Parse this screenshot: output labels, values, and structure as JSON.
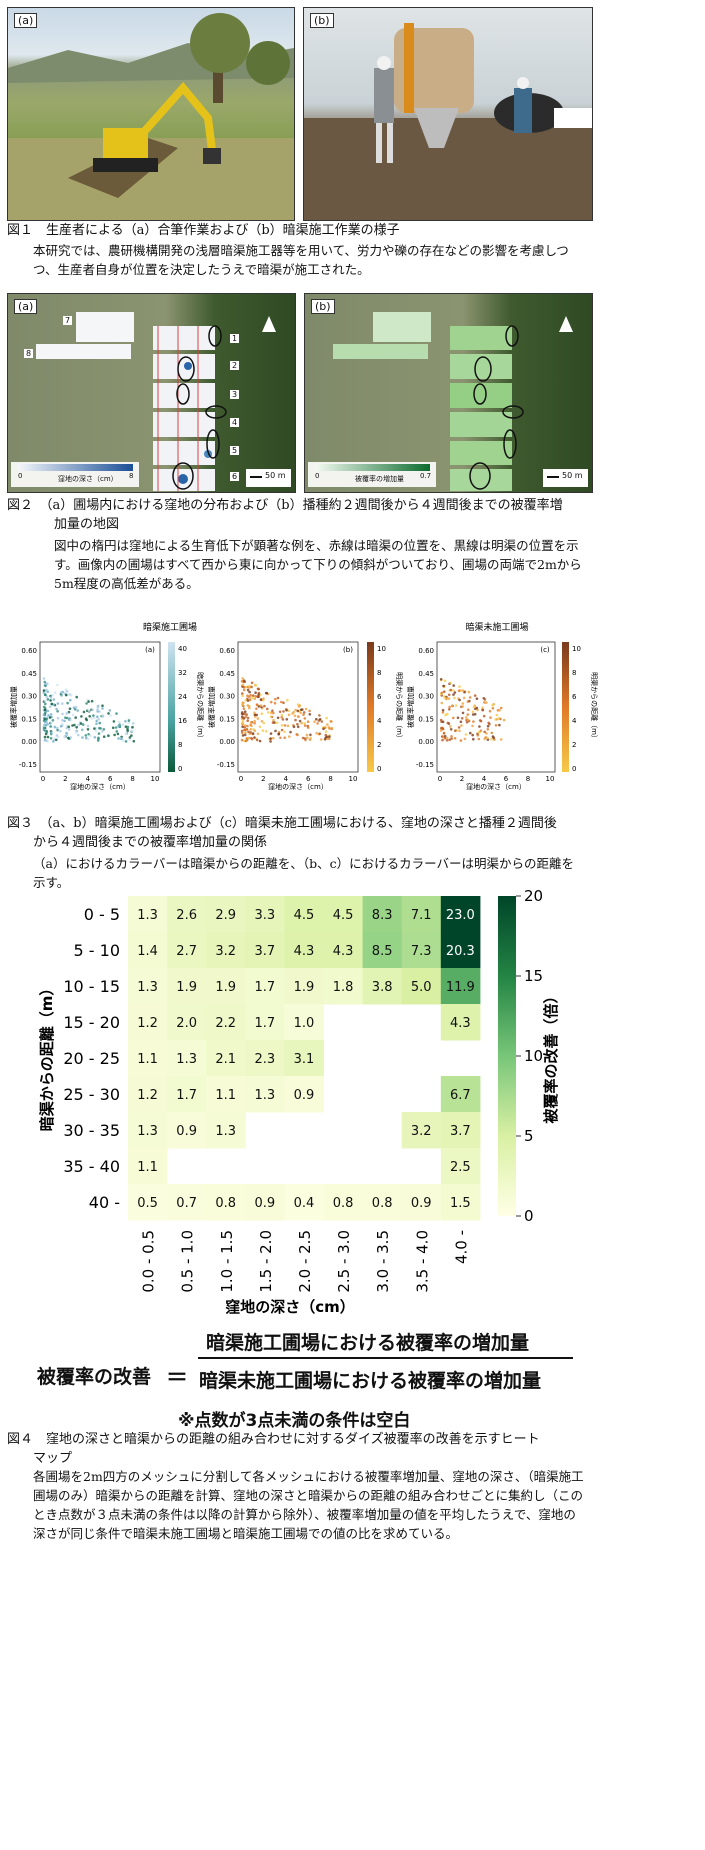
{
  "fig1": {
    "label_a": "(a)",
    "label_b": "(b)",
    "caption": "図１　生産者による（a）合筆作業および（b）暗渠施工作業の様子",
    "body": "本研究では、農研機構開発の浅層暗渠施工器等を用いて、労力や礫の存在などの影響を考慮しつつ、生産者自身が位置を決定したうえで暗渠が施工された。"
  },
  "fig2": {
    "label_a": "(a)",
    "label_b": "(b)",
    "field_numbers": [
      "1",
      "2",
      "3",
      "4",
      "5",
      "6",
      "7",
      "8"
    ],
    "colorbar_a_label": "窪地の深さ（cm）",
    "colorbar_a_min": "0",
    "colorbar_a_max": "8",
    "colorbar_b_label": "被覆率の増加量",
    "colorbar_b_min": "0",
    "colorbar_b_max": "0.7",
    "scale": "50 m",
    "caption_line1": "図２　（a）圃場内における窪地の分布および（b）播種約２週間後から４週間後までの被覆率増",
    "caption_line2": "加量の地図",
    "body": "図中の楕円は窪地による生育低下が顕著な例を、赤線は暗渠の位置を、黒線は明渠の位置を示す。画像内の圃場はすべて西から東に向かって下りの傾斜がついており、圃場の両端で2mから5m程度の高低差がある。"
  },
  "fig3": {
    "title_left": "暗渠施工圃場",
    "title_right": "暗渠未施工圃場",
    "panels": [
      "(a)",
      "(b)",
      "(c)"
    ],
    "ylabel": "被覆率増加量",
    "xlabel": "窪地の深さ（cm）",
    "yticks": [
      "0.60",
      "0.45",
      "0.30",
      "0.15",
      "0.00",
      "-0.15"
    ],
    "xticks": [
      "0",
      "2",
      "4",
      "6",
      "8",
      "10"
    ],
    "cbar_a_label": "暗渠からの距離（m）",
    "cbar_a_ticks": [
      "40",
      "32",
      "24",
      "16",
      "8",
      "0"
    ],
    "cbar_bc_label": "明渠からの距離（m）",
    "cbar_bc_ticks": [
      "10",
      "8",
      "6",
      "4",
      "2",
      "0"
    ],
    "caption_line1": "図３　（a、b）暗渠施工圃場および（c）暗渠未施工圃場における、窪地の深さと播種２週間後",
    "caption_line2": "から４週間後までの被覆率増加量の関係",
    "body": "（a）におけるカラーバーは暗渠からの距離を、（b、c）におけるカラーバーは明渠からの距離を示す。"
  },
  "chart_data": {
    "type": "heatmap",
    "xlabel": "窪地の深さ（cm）",
    "ylabel": "暗渠からの距離（m）",
    "colorbar_label": "被覆率の改善（倍）",
    "colorbar_ticks": [
      "20",
      "15",
      "10",
      "5",
      "0"
    ],
    "vmin": 0,
    "vmax": 20,
    "x_categories": [
      "0.0 - 0.5",
      "0.5 - 1.0",
      "1.0 - 1.5",
      "1.5 - 2.0",
      "2.0 - 2.5",
      "2.5 - 3.0",
      "3.0 - 3.5",
      "3.5 - 4.0",
      "4.0 -"
    ],
    "y_categories": [
      "0 - 5",
      "5 - 10",
      "10 - 15",
      "15 - 20",
      "20 - 25",
      "25 - 30",
      "30 - 35",
      "35 - 40",
      "40 -"
    ],
    "values": [
      [
        1.3,
        2.6,
        2.9,
        3.3,
        4.5,
        4.5,
        8.3,
        7.1,
        23.0
      ],
      [
        1.4,
        2.7,
        3.2,
        3.7,
        4.3,
        4.3,
        8.5,
        7.3,
        20.3
      ],
      [
        1.3,
        1.9,
        1.9,
        1.7,
        1.9,
        1.8,
        3.8,
        5.0,
        11.9
      ],
      [
        1.2,
        2.0,
        2.2,
        1.7,
        1.0,
        null,
        null,
        null,
        4.3
      ],
      [
        1.1,
        1.3,
        2.1,
        2.3,
        3.1,
        null,
        null,
        null,
        null
      ],
      [
        1.2,
        1.7,
        1.1,
        1.3,
        0.9,
        null,
        null,
        null,
        6.7
      ],
      [
        1.3,
        0.9,
        1.3,
        null,
        null,
        null,
        null,
        3.2,
        3.7
      ],
      [
        1.1,
        null,
        null,
        null,
        null,
        null,
        null,
        null,
        2.5
      ],
      [
        0.5,
        0.7,
        0.8,
        0.9,
        0.4,
        0.8,
        0.8,
        0.9,
        1.5
      ]
    ]
  },
  "fig4": {
    "formula_lhs": "被覆率の改善",
    "formula_eq": "＝",
    "formula_num": "暗渠施工圃場における被覆率の増加量",
    "formula_den": "暗渠未施工圃場における被覆率の増加量",
    "note": "※点数が3点未満の条件は空白",
    "caption_line1": "図４　窪地の深さと暗渠からの距離の組み合わせに対するダイズ被覆率の改善を示すヒート",
    "caption_line2": "マップ",
    "body": "各圃場を2m四方のメッシュに分割して各メッシュにおける被覆率増加量、窪地の深さ、（暗渠施工圃場のみ）暗渠からの距離を計算、窪地の深さと暗渠からの距離の組み合わせごとに集約し（このとき点数が３点未満の条件は以降の計算から除外）、被覆率増加量の値を平均したうえで、窪地の深さが同じ条件で暗渠未施工圃場と暗渠施工圃場での値の比を求めている。"
  }
}
